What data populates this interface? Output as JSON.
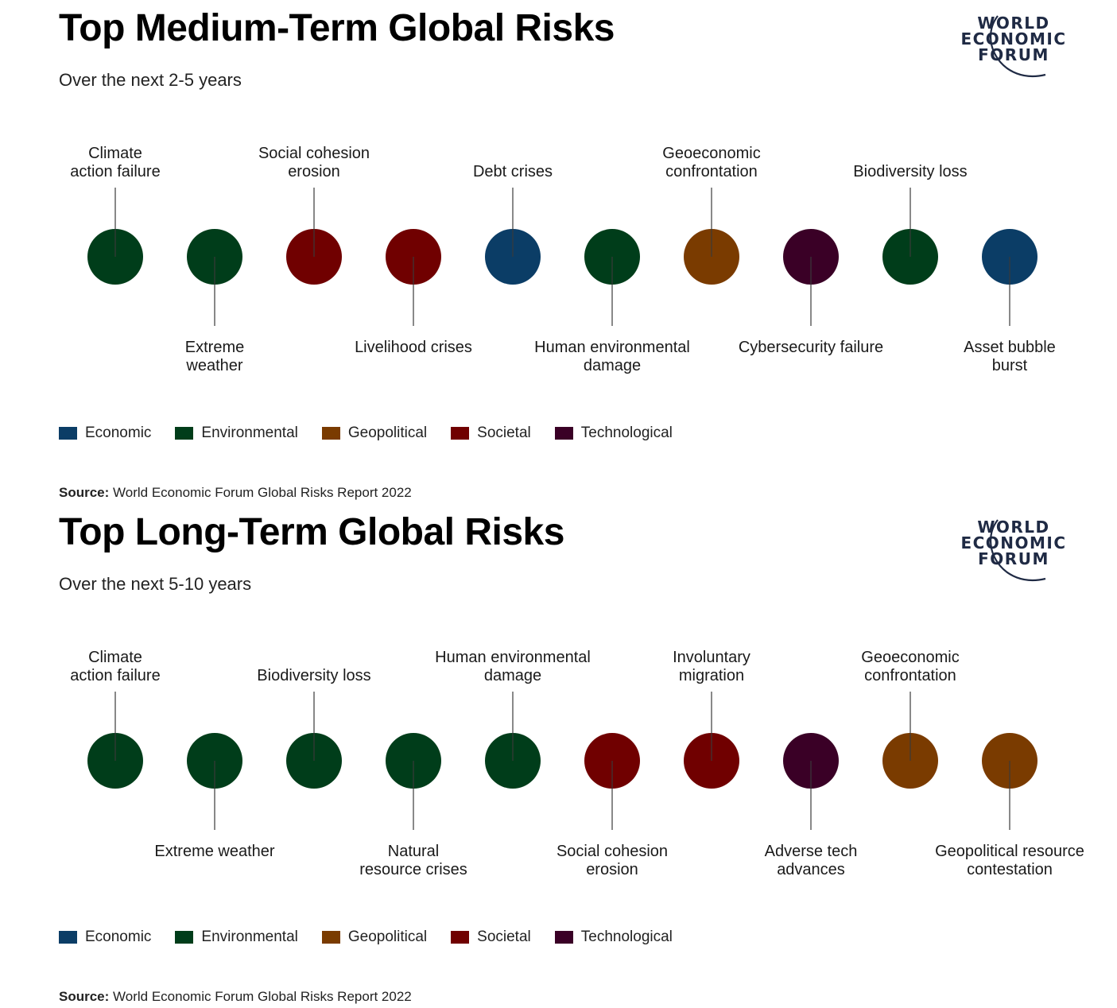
{
  "colors": {
    "Economic": "#0b3d66",
    "Environmental": "#003d1a",
    "Geopolitical": "#7a3b00",
    "Societal": "#700000",
    "Technological": "#3a0026",
    "line": "#3a3a3a"
  },
  "logo": {
    "line1": "WORLD",
    "line2": "ECONOMIC",
    "line3": "FORUM",
    "color": "#1f2a44"
  },
  "legend": [
    "Economic",
    "Environmental",
    "Geopolitical",
    "Societal",
    "Technological"
  ],
  "panels": [
    {
      "title": "Top Medium-Term Global Risks",
      "subtitle": "Over the next 2-5 years",
      "source_label": "Source:",
      "source_text": " World Economic Forum Global Risks Report 2022"
    },
    {
      "title": "Top Long-Term Global Risks",
      "subtitle": "Over the next 5-10 years",
      "source_label": "Source:",
      "source_text": " World Economic Forum Global Risks Report 2022"
    }
  ],
  "chart_data": [
    {
      "type": "table",
      "title": "Top Medium-Term Global Risks",
      "subtitle": "Over the next 2-5 years",
      "categories": [
        "Economic",
        "Environmental",
        "Geopolitical",
        "Societal",
        "Technological"
      ],
      "risks": [
        {
          "rank": 1,
          "label": [
            "Climate",
            "action failure"
          ],
          "category": "Environmental"
        },
        {
          "rank": 2,
          "label": [
            "Extreme",
            "weather"
          ],
          "category": "Environmental"
        },
        {
          "rank": 3,
          "label": [
            "Social cohesion",
            "erosion"
          ],
          "category": "Societal"
        },
        {
          "rank": 4,
          "label": [
            "Livelihood crises"
          ],
          "category": "Societal"
        },
        {
          "rank": 5,
          "label": [
            "Debt crises"
          ],
          "category": "Economic"
        },
        {
          "rank": 6,
          "label": [
            "Human environmental",
            "damage"
          ],
          "category": "Environmental"
        },
        {
          "rank": 7,
          "label": [
            "Geoeconomic",
            "confrontation"
          ],
          "category": "Geopolitical"
        },
        {
          "rank": 8,
          "label": [
            "Cybersecurity failure"
          ],
          "category": "Technological"
        },
        {
          "rank": 9,
          "label": [
            "Biodiversity loss"
          ],
          "category": "Environmental"
        },
        {
          "rank": 10,
          "label": [
            "Asset bubble",
            "burst"
          ],
          "category": "Economic"
        }
      ]
    },
    {
      "type": "table",
      "title": "Top Long-Term Global Risks",
      "subtitle": "Over the next 5-10 years",
      "categories": [
        "Economic",
        "Environmental",
        "Geopolitical",
        "Societal",
        "Technological"
      ],
      "risks": [
        {
          "rank": 1,
          "label": [
            "Climate",
            "action failure"
          ],
          "category": "Environmental"
        },
        {
          "rank": 2,
          "label": [
            "Extreme weather"
          ],
          "category": "Environmental"
        },
        {
          "rank": 3,
          "label": [
            "Biodiversity loss"
          ],
          "category": "Environmental"
        },
        {
          "rank": 4,
          "label": [
            "Natural",
            "resource crises"
          ],
          "category": "Environmental"
        },
        {
          "rank": 5,
          "label": [
            "Human environmental",
            "damage"
          ],
          "category": "Environmental"
        },
        {
          "rank": 6,
          "label": [
            "Social cohesion",
            "erosion"
          ],
          "category": "Societal"
        },
        {
          "rank": 7,
          "label": [
            "Involuntary",
            "migration"
          ],
          "category": "Societal"
        },
        {
          "rank": 8,
          "label": [
            "Adverse tech",
            "advances"
          ],
          "category": "Technological"
        },
        {
          "rank": 9,
          "label": [
            "Geoeconomic",
            "confrontation"
          ],
          "category": "Geopolitical"
        },
        {
          "rank": 10,
          "label": [
            "Geopolitical resource",
            "contestation"
          ],
          "category": "Geopolitical"
        }
      ]
    }
  ]
}
